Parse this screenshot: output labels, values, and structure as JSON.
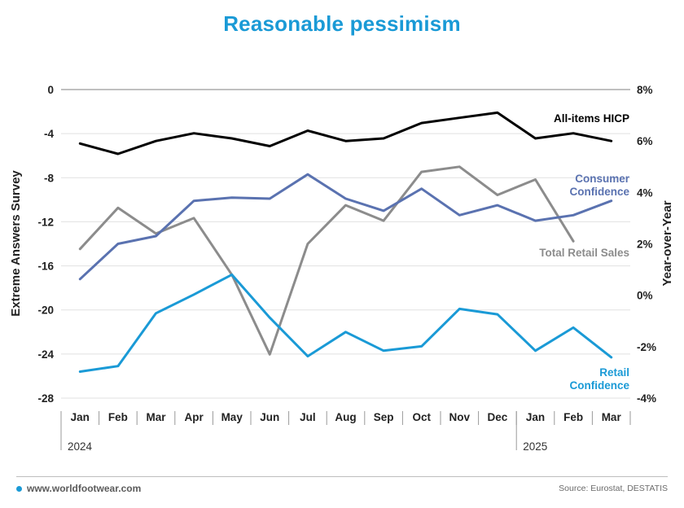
{
  "chart_data": {
    "type": "line",
    "title": "Reasonable pessimism",
    "ylabel_left": "Extreme Answers Survey",
    "ylabel_right": "Year-over-Year",
    "categories": [
      "Jan",
      "Feb",
      "Mar",
      "Apr",
      "May",
      "Jun",
      "Jul",
      "Aug",
      "Sep",
      "Oct",
      "Nov",
      "Dec",
      "Jan",
      "Feb",
      "Mar"
    ],
    "year_labels": [
      {
        "label": "2024",
        "start_index": 0
      },
      {
        "label": "2025",
        "start_index": 12
      }
    ],
    "left_axis": {
      "ylim": [
        -28,
        0
      ],
      "ticks": [
        "0",
        "-4",
        "-8",
        "-12",
        "-16",
        "-20",
        "-24",
        "-28"
      ],
      "tick_values": [
        0,
        -4,
        -8,
        -12,
        -16,
        -20,
        -24,
        -28
      ]
    },
    "right_axis": {
      "ylim": [
        -4,
        8
      ],
      "ticks": [
        "8%",
        "6%",
        "4%",
        "2%",
        "0%",
        "-2%",
        "-4%"
      ],
      "tick_values": [
        8,
        6,
        4,
        2,
        0,
        -2,
        -4
      ]
    },
    "grid": "horizontal",
    "series": [
      {
        "name": "All-items HICP",
        "axis": "right",
        "color": "#000000",
        "values": [
          5.9,
          5.5,
          6.0,
          6.3,
          6.1,
          5.8,
          6.4,
          6.0,
          6.1,
          6.7,
          6.9,
          7.1,
          6.1,
          6.3,
          6.0
        ]
      },
      {
        "name": "Consumer Confidence",
        "label_lines": [
          "Consumer",
          "Confidence"
        ],
        "axis": "left",
        "color": "#5a72b0",
        "values": [
          -17.2,
          -14.0,
          -13.3,
          -10.1,
          -9.8,
          -9.9,
          -7.7,
          -9.9,
          -11.0,
          -9.0,
          -11.4,
          -10.5,
          -11.9,
          -11.4,
          -10.1
        ]
      },
      {
        "name": "Total Retail Sales",
        "axis": "right",
        "color": "#8c8c8c",
        "values": [
          1.8,
          3.4,
          2.4,
          3.0,
          0.8,
          -2.3,
          2.0,
          3.5,
          2.9,
          4.8,
          5.0,
          3.9,
          4.5,
          2.1,
          null
        ]
      },
      {
        "name": "Retail Confidence",
        "label_lines": [
          "Retail",
          "Confidence"
        ],
        "axis": "left",
        "color": "#1a9ad6",
        "values": [
          -25.6,
          -25.1,
          -20.3,
          -18.6,
          -16.8,
          -20.7,
          -24.2,
          -22.0,
          -23.7,
          -23.3,
          -19.9,
          -20.4,
          -23.7,
          -21.6,
          -24.3
        ]
      }
    ]
  },
  "footer": {
    "website": "www.worldfootwear.com",
    "source": "Source: Eurostat, DESTATIS",
    "accent_color": "#1a9ad6"
  }
}
